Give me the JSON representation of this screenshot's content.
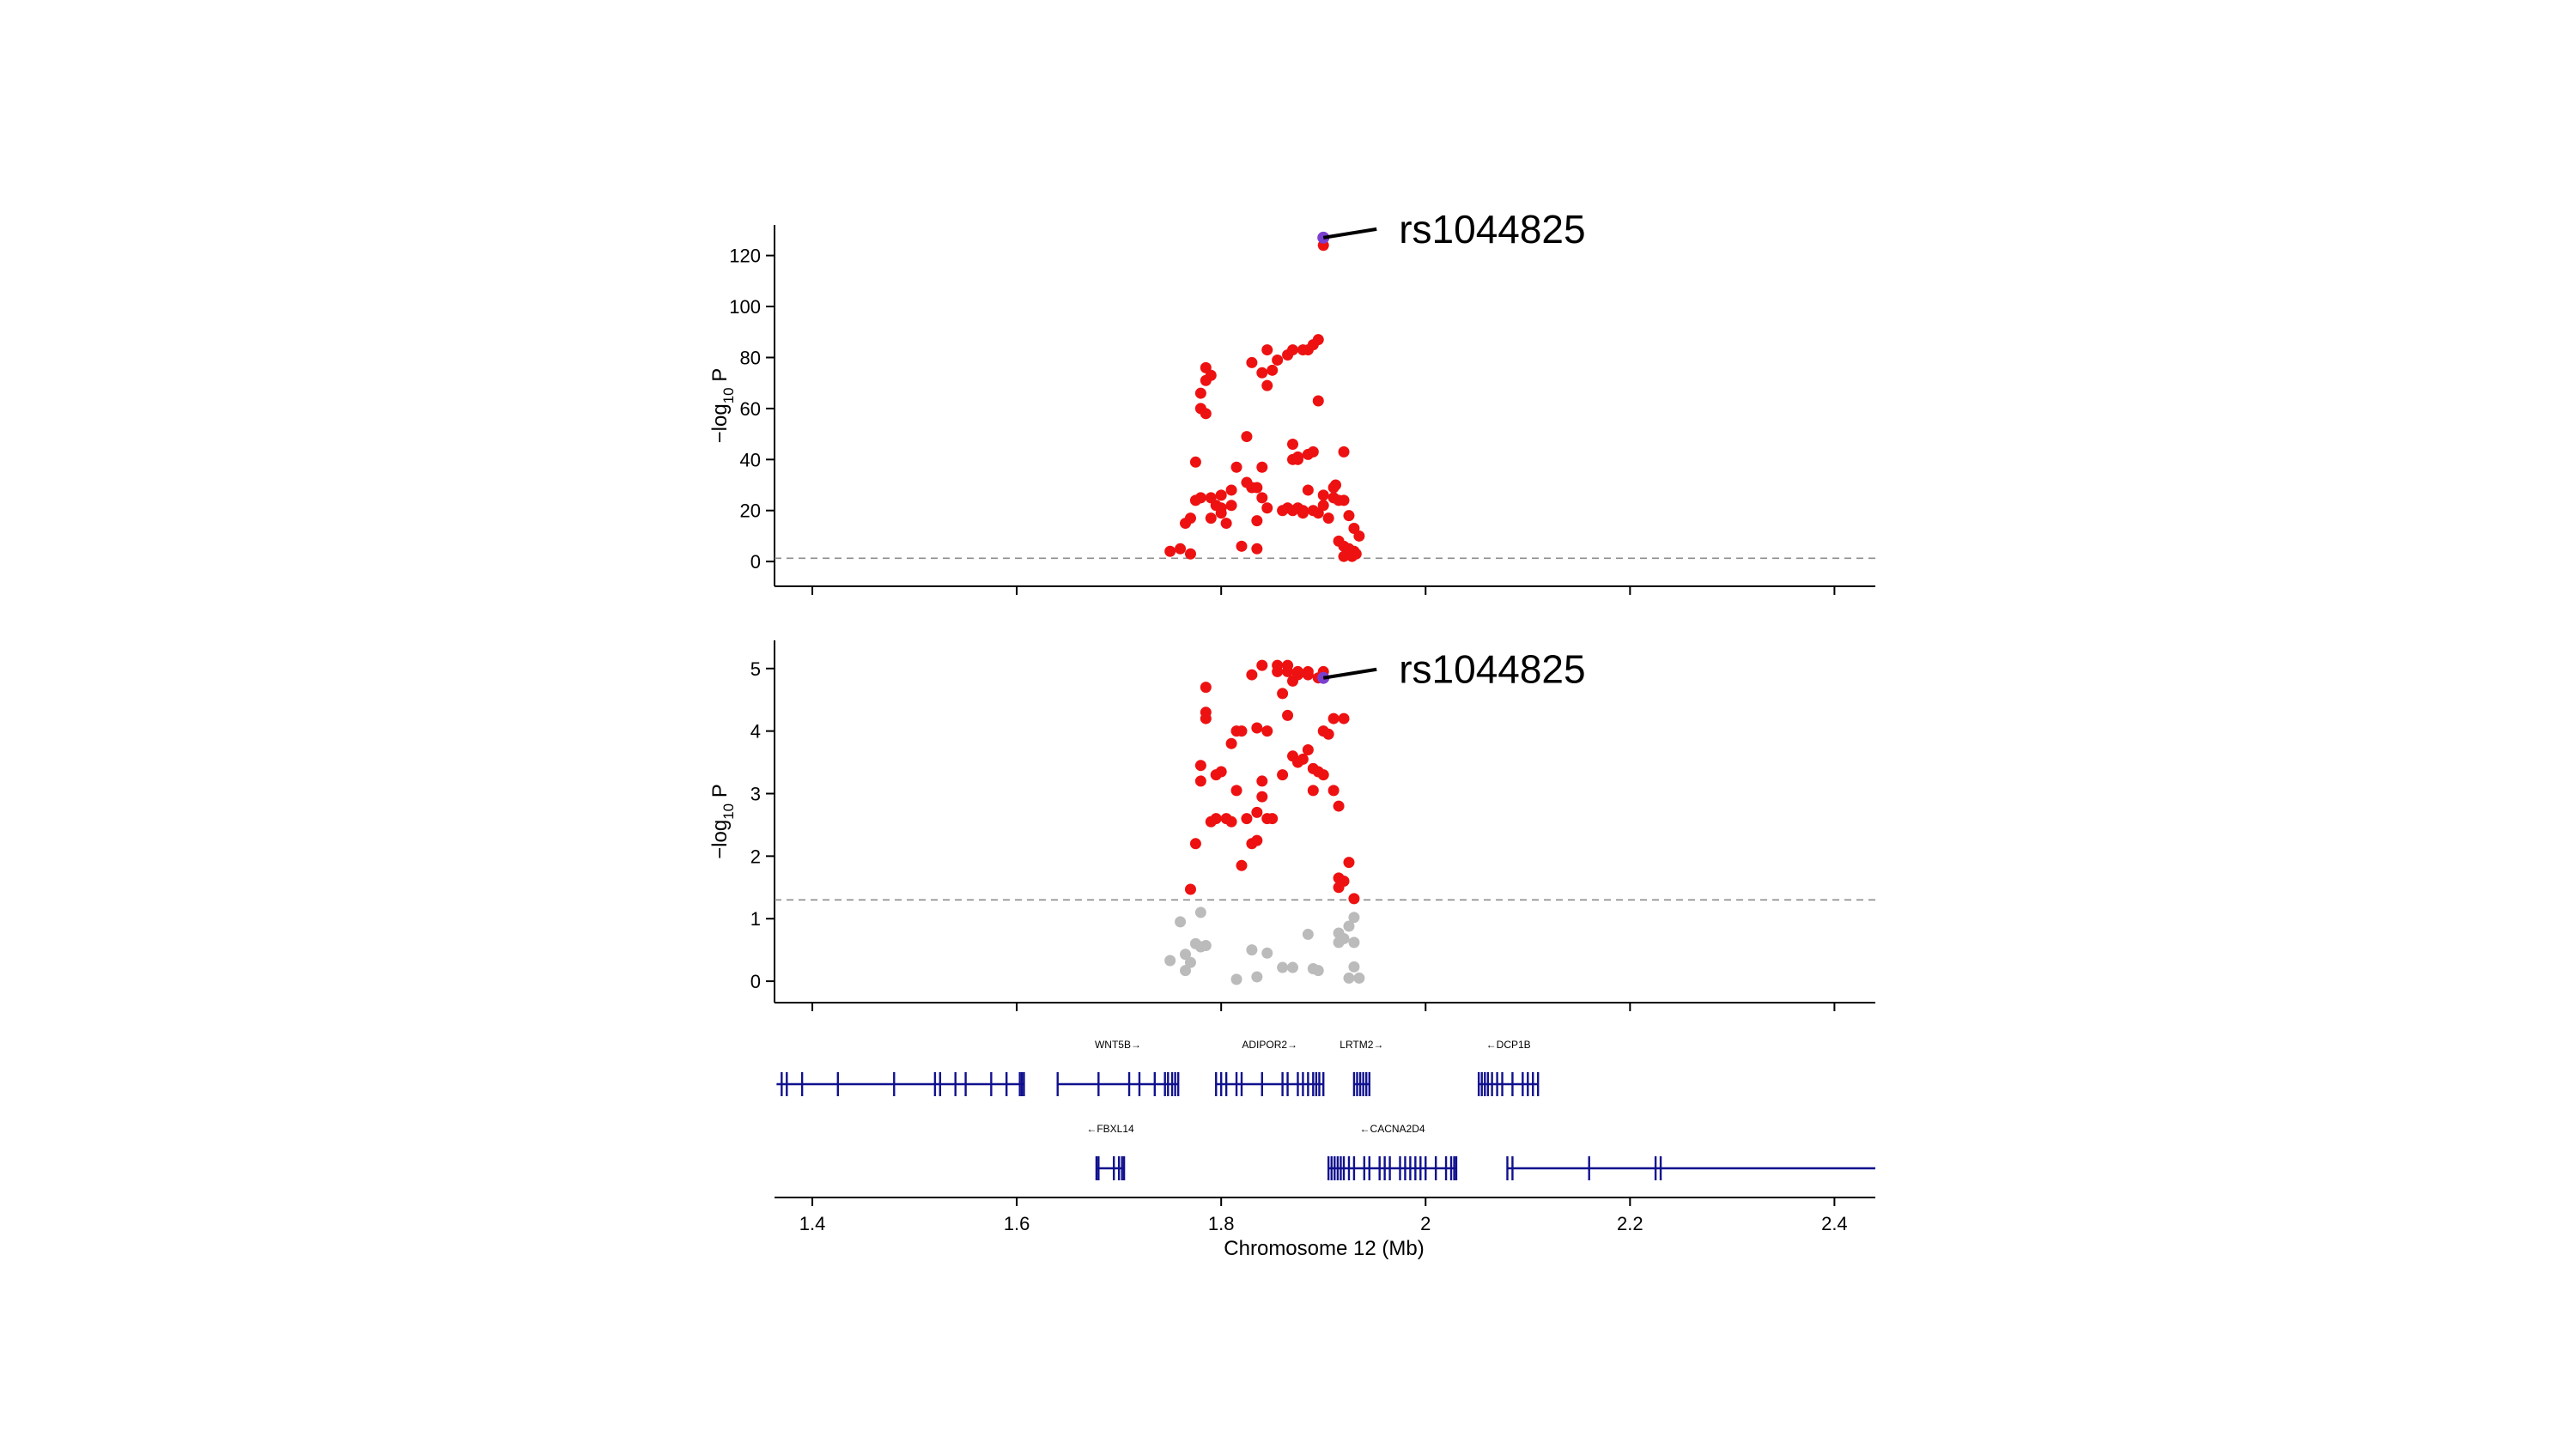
{
  "colors": {
    "significant": "#ee1111",
    "nonsignificant": "#bbbbbb",
    "lead": "#7b3fd0",
    "gene": "#10108f",
    "threshold": "#8c8c8c"
  },
  "chart_data": {
    "type": "scatter",
    "xlabel": "Chromosome 12 (Mb)",
    "xlim": [
      1.363,
      2.44
    ],
    "x_ticks": [
      1.4,
      1.6,
      1.8,
      2,
      2.2,
      2.4
    ],
    "x_tick_labels": [
      "1.4",
      "1.6",
      "1.8",
      "2",
      "2.2",
      "2.4"
    ],
    "panels": [
      {
        "id": "top",
        "ylabel": "−log",
        "ylabel_sub": "10",
        "ylabel_tail": " P",
        "ylim": [
          -5,
          132
        ],
        "y_ticks": [
          0,
          20,
          40,
          60,
          80,
          100,
          120
        ],
        "y_tick_labels": [
          "0",
          "20",
          "40",
          "60",
          "80",
          "100",
          "120"
        ],
        "threshold": 1.3,
        "lead_snp": {
          "label": "rs1044825",
          "x": 1.9,
          "y": 127
        },
        "series": [
          {
            "name": "significant",
            "points": [
              [
                1.75,
                4
              ],
              [
                1.76,
                5
              ],
              [
                1.77,
                3
              ],
              [
                1.765,
                15
              ],
              [
                1.77,
                17
              ],
              [
                1.775,
                24
              ],
              [
                1.78,
                25
              ],
              [
                1.775,
                39
              ],
              [
                1.79,
                25
              ],
              [
                1.8,
                26
              ],
              [
                1.78,
                60
              ],
              [
                1.785,
                58
              ],
              [
                1.78,
                66
              ],
              [
                1.785,
                71
              ],
              [
                1.79,
                73
              ],
              [
                1.785,
                76
              ],
              [
                1.79,
                17
              ],
              [
                1.8,
                19
              ],
              [
                1.81,
                22
              ],
              [
                1.805,
                15
              ],
              [
                1.81,
                28
              ],
              [
                1.815,
                37
              ],
              [
                1.825,
                31
              ],
              [
                1.82,
                6
              ],
              [
                1.835,
                5
              ],
              [
                1.835,
                16
              ],
              [
                1.84,
                25
              ],
              [
                1.845,
                21
              ],
              [
                1.84,
                37
              ],
              [
                1.83,
                29
              ],
              [
                1.835,
                29
              ],
              [
                1.8,
                21
              ],
              [
                1.795,
                22
              ],
              [
                1.825,
                49
              ],
              [
                1.83,
                78
              ],
              [
                1.84,
                74
              ],
              [
                1.845,
                69
              ],
              [
                1.85,
                75
              ],
              [
                1.845,
                83
              ],
              [
                1.855,
                79
              ],
              [
                1.865,
                81
              ],
              [
                1.87,
                83
              ],
              [
                1.885,
                83
              ],
              [
                1.89,
                85
              ],
              [
                1.88,
                83
              ],
              [
                1.895,
                87
              ],
              [
                1.895,
                63
              ],
              [
                1.885,
                42
              ],
              [
                1.89,
                43
              ],
              [
                1.86,
                20
              ],
              [
                1.865,
                21
              ],
              [
                1.87,
                20
              ],
              [
                1.875,
                21
              ],
              [
                1.88,
                19
              ],
              [
                1.87,
                40
              ],
              [
                1.875,
                40
              ],
              [
                1.87,
                46
              ],
              [
                1.875,
                41
              ],
              [
                1.88,
                20
              ],
              [
                1.885,
                28
              ],
              [
                1.89,
                20
              ],
              [
                1.9,
                22
              ],
              [
                1.9,
                26
              ],
              [
                1.895,
                19
              ],
              [
                1.905,
                17
              ],
              [
                1.91,
                25
              ],
              [
                1.915,
                24
              ],
              [
                1.92,
                43
              ],
              [
                1.915,
                8
              ],
              [
                1.92,
                6
              ],
              [
                1.92,
                2
              ],
              [
                1.925,
                18
              ],
              [
                1.93,
                13
              ],
              [
                1.93,
                4
              ],
              [
                1.935,
                10
              ],
              [
                1.925,
                5
              ],
              [
                1.92,
                24
              ],
              [
                1.91,
                29
              ],
              [
                1.912,
                30
              ],
              [
                1.928,
                2
              ],
              [
                1.932,
                3
              ],
              [
                1.9,
                124
              ]
            ]
          },
          {
            "name": "lead",
            "points": [
              [
                1.9,
                127
              ]
            ]
          }
        ]
      },
      {
        "id": "bottom",
        "ylabel": "−log",
        "ylabel_sub": "10",
        "ylabel_tail": " P",
        "ylim": [
          -0.15,
          5.45
        ],
        "y_ticks": [
          0,
          1,
          2,
          3,
          4,
          5
        ],
        "y_tick_labels": [
          "0",
          "1",
          "2",
          "3",
          "4",
          "5"
        ],
        "threshold": 1.3,
        "lead_snp": {
          "label": "rs1044825",
          "x": 1.9,
          "y": 4.85
        },
        "series": [
          {
            "name": "nonsignificant",
            "points": [
              [
                1.75,
                0.33
              ],
              [
                1.76,
                0.95
              ],
              [
                1.765,
                0.43
              ],
              [
                1.765,
                0.17
              ],
              [
                1.77,
                0.3
              ],
              [
                1.775,
                0.6
              ],
              [
                1.78,
                0.55
              ],
              [
                1.78,
                1.1
              ],
              [
                1.785,
                0.57
              ],
              [
                1.815,
                0.03
              ],
              [
                1.835,
                0.07
              ],
              [
                1.83,
                0.5
              ],
              [
                1.845,
                0.45
              ],
              [
                1.86,
                0.22
              ],
              [
                1.87,
                0.22
              ],
              [
                1.885,
                0.75
              ],
              [
                1.89,
                0.2
              ],
              [
                1.895,
                0.17
              ],
              [
                1.915,
                0.77
              ],
              [
                1.915,
                0.62
              ],
              [
                1.92,
                0.68
              ],
              [
                1.925,
                0.88
              ],
              [
                1.93,
                0.62
              ],
              [
                1.93,
                1.02
              ],
              [
                1.925,
                0.05
              ],
              [
                1.93,
                0.23
              ],
              [
                1.935,
                0.05
              ]
            ]
          },
          {
            "name": "significant",
            "points": [
              [
                1.77,
                1.47
              ],
              [
                1.775,
                2.2
              ],
              [
                1.78,
                3.2
              ],
              [
                1.78,
                3.45
              ],
              [
                1.785,
                4.3
              ],
              [
                1.785,
                4.2
              ],
              [
                1.785,
                4.7
              ],
              [
                1.79,
                2.55
              ],
              [
                1.795,
                3.3
              ],
              [
                1.8,
                3.35
              ],
              [
                1.795,
                2.6
              ],
              [
                1.805,
                2.6
              ],
              [
                1.81,
                2.55
              ],
              [
                1.81,
                3.8
              ],
              [
                1.815,
                4
              ],
              [
                1.815,
                3.05
              ],
              [
                1.82,
                1.85
              ],
              [
                1.825,
                2.6
              ],
              [
                1.83,
                4.9
              ],
              [
                1.83,
                2.2
              ],
              [
                1.835,
                2.7
              ],
              [
                1.835,
                2.25
              ],
              [
                1.84,
                3.2
              ],
              [
                1.84,
                2.95
              ],
              [
                1.845,
                4
              ],
              [
                1.845,
                2.6
              ],
              [
                1.85,
                2.6
              ],
              [
                1.835,
                4.05
              ],
              [
                1.84,
                5.05
              ],
              [
                1.82,
                4
              ],
              [
                1.86,
                4.6
              ],
              [
                1.865,
                4.95
              ],
              [
                1.87,
                4.8
              ],
              [
                1.865,
                4.25
              ],
              [
                1.86,
                3.3
              ],
              [
                1.87,
                3.6
              ],
              [
                1.875,
                3.5
              ],
              [
                1.875,
                4.9
              ],
              [
                1.88,
                3.55
              ],
              [
                1.885,
                3.7
              ],
              [
                1.885,
                4.9
              ],
              [
                1.89,
                3.4
              ],
              [
                1.895,
                3.35
              ],
              [
                1.9,
                3.3
              ],
              [
                1.9,
                4
              ],
              [
                1.905,
                3.95
              ],
              [
                1.91,
                3.05
              ],
              [
                1.91,
                4.2
              ],
              [
                1.915,
                2.8
              ],
              [
                1.92,
                4.2
              ],
              [
                1.925,
                1.9
              ],
              [
                1.915,
                1.65
              ],
              [
                1.92,
                1.6
              ],
              [
                1.915,
                1.5
              ],
              [
                1.93,
                1.32
              ],
              [
                1.89,
                3.05
              ],
              [
                1.9,
                4.95
              ],
              [
                1.895,
                4.85
              ],
              [
                1.885,
                4.95
              ],
              [
                1.865,
                5.05
              ],
              [
                1.875,
                4.95
              ],
              [
                1.855,
                4.95
              ],
              [
                1.855,
                5.05
              ]
            ]
          },
          {
            "name": "lead",
            "points": [
              [
                1.9,
                4.85
              ]
            ]
          }
        ]
      }
    ],
    "genes": [
      {
        "name": "",
        "row": 0,
        "start": 1.365,
        "end": 1.607,
        "exons": [
          1.37,
          1.375,
          1.39,
          1.425,
          1.48,
          1.52,
          1.525,
          1.54,
          1.55,
          1.575,
          1.59,
          1.603,
          1.605,
          1.607
        ]
      },
      {
        "name": "WNT5B→",
        "row": 0,
        "start": 1.64,
        "end": 1.758,
        "exons": [
          1.64,
          1.68,
          1.71,
          1.72,
          1.735,
          1.745,
          1.748,
          1.752,
          1.755,
          1.758
        ]
      },
      {
        "name": "ADIPOR2→",
        "row": 0,
        "start": 1.795,
        "end": 1.9,
        "exons": [
          1.795,
          1.8,
          1.805,
          1.815,
          1.82,
          1.84,
          1.86,
          1.865,
          1.875,
          1.88,
          1.885,
          1.89,
          1.893,
          1.896,
          1.9
        ]
      },
      {
        "name": "LRTM2→",
        "row": 0,
        "start": 1.93,
        "end": 1.945,
        "exons": [
          1.93,
          1.933,
          1.936,
          1.939,
          1.942,
          1.945
        ]
      },
      {
        "name": "←DCP1B",
        "row": 0,
        "start": 2.052,
        "end": 2.11,
        "exons": [
          2.052,
          2.055,
          2.058,
          2.061,
          2.065,
          2.07,
          2.075,
          2.085,
          2.095,
          2.1,
          2.105,
          2.11
        ]
      },
      {
        "name": "←FBXL14",
        "row": 1,
        "start": 1.678,
        "end": 1.705,
        "exons": [
          1.678,
          1.68,
          1.695,
          1.7,
          1.703,
          1.705
        ]
      },
      {
        "name": "←CACNA2D4",
        "row": 1,
        "start": 1.905,
        "end": 2.03,
        "exons": [
          1.905,
          1.908,
          1.911,
          1.914,
          1.917,
          1.92,
          1.925,
          1.93,
          1.94,
          1.945,
          1.955,
          1.96,
          1.965,
          1.975,
          1.98,
          1.985,
          1.99,
          1.995,
          2,
          2.01,
          2.02,
          2.025,
          2.028,
          2.03
        ]
      },
      {
        "name": "",
        "row": 1,
        "start": 2.08,
        "end": 2.44,
        "exons": [
          2.08,
          2.085,
          2.16,
          2.225,
          2.23
        ]
      }
    ]
  }
}
